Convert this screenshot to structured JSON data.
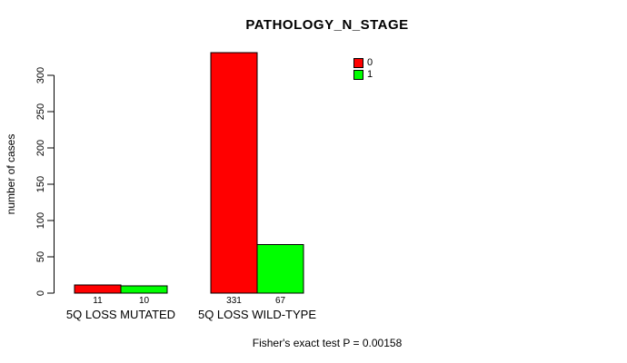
{
  "chart_data": {
    "type": "bar",
    "title": "PATHOLOGY_N_STAGE",
    "ylabel": "number of cases",
    "xlabel": "",
    "categories": [
      "5Q LOSS MUTATED",
      "5Q LOSS WILD-TYPE"
    ],
    "series": [
      {
        "name": "0",
        "color": "#FF0000",
        "values": [
          11,
          331
        ]
      },
      {
        "name": "1",
        "color": "#00FF00",
        "values": [
          10,
          67
        ]
      }
    ],
    "bar_value_labels": [
      [
        "11",
        "10"
      ],
      [
        "331",
        "67"
      ]
    ],
    "yticks": [
      0,
      50,
      100,
      150,
      200,
      250,
      300
    ],
    "ylim": [
      0,
      331
    ],
    "grid": false,
    "legend_position": "top-right",
    "footnote": "Fisher's exact test P = 0.00158"
  },
  "colors": {
    "background": "#FFFFFF",
    "text": "#000000",
    "axis": "#000000",
    "bar_border": "#000000"
  }
}
